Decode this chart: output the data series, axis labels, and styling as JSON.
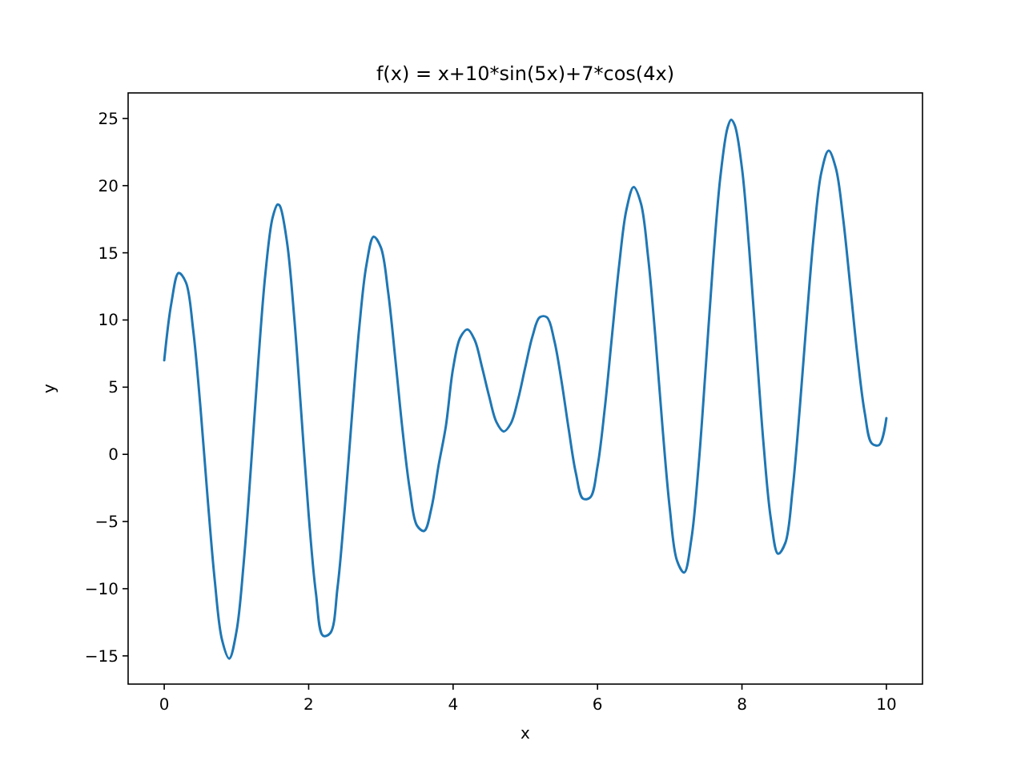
{
  "chart_data": {
    "type": "line",
    "title": "f(x) = x+10*sin(5x)+7*cos(4x)",
    "xlabel": "x",
    "ylabel": "y",
    "xlim": [
      -0.5,
      10.5
    ],
    "ylim": [
      -17.1,
      26.9
    ],
    "xticks": [
      0,
      2,
      4,
      6,
      8,
      10
    ],
    "yticks": [
      -15,
      -10,
      -5,
      0,
      5,
      10,
      15,
      20,
      25
    ],
    "marker": "none",
    "line_style": "solid",
    "series": [
      {
        "color": "#1f77b4",
        "x": [
          0,
          0.1,
          0.2,
          0.3,
          0.4,
          0.5,
          0.6,
          0.7,
          0.8,
          0.9,
          1,
          1.1,
          1.2,
          1.3,
          1.4,
          1.5,
          1.57,
          1.6,
          1.7,
          1.8,
          1.9,
          2,
          2.1,
          2.2,
          2.3,
          2.4,
          2.5,
          2.6,
          2.7,
          2.8,
          2.9,
          3,
          3.1,
          3.2,
          3.3,
          3.4,
          3.5,
          3.6,
          3.7,
          3.8,
          3.9,
          4,
          4.1,
          4.2,
          4.3,
          4.4,
          4.5,
          4.6,
          4.7,
          4.8,
          4.9,
          5,
          5.1,
          5.2,
          5.3,
          5.4,
          5.5,
          5.6,
          5.7,
          5.8,
          5.9,
          6,
          6.1,
          6.2,
          6.3,
          6.4,
          6.5,
          6.6,
          6.7,
          6.8,
          6.9,
          7,
          7.1,
          7.2,
          7.3,
          7.4,
          7.5,
          7.6,
          7.7,
          7.8,
          7.85,
          7.9,
          8,
          8.1,
          8.2,
          8.3,
          8.4,
          8.5,
          8.6,
          8.7,
          8.8,
          8.9,
          9,
          9.1,
          9.2,
          9.3,
          9.4,
          9.5,
          9.6,
          9.7,
          9.8,
          9.9,
          10
        ],
        "values": [
          7.0,
          11.3,
          13.5,
          12.8,
          9.3,
          3.6,
          -3.2,
          -9.4,
          -13.8,
          -15.2,
          -13.2,
          -8.1,
          -1.0,
          6.7,
          13.4,
          17.6,
          18.6,
          18.5,
          15.8,
          10.2,
          2.9,
          -4.5,
          -10.3,
          -13.5,
          -13.3,
          -9.9,
          -4.0,
          2.9,
          9.4,
          14.1,
          16.2,
          15.4,
          12.1,
          7.1,
          1.8,
          -2.6,
          -5.3,
          -5.7,
          -4.0,
          -0.8,
          2.1,
          6.4,
          8.7,
          9.3,
          8.5,
          6.5,
          4.3,
          2.4,
          1.7,
          2.3,
          4.1,
          6.5,
          8.8,
          10.2,
          10.2,
          8.5,
          5.5,
          1.9,
          -1.4,
          -3.3,
          -3.2,
          -0.9,
          3.4,
          8.8,
          14.1,
          18.2,
          19.9,
          18.7,
          14.7,
          8.8,
          2.0,
          -4.0,
          -7.9,
          -8.8,
          -6.3,
          -0.8,
          6.6,
          14.3,
          20.6,
          24.3,
          24.9,
          24.5,
          21.3,
          15.3,
          7.9,
          0.7,
          -4.8,
          -7.4,
          -6.6,
          -2.7,
          3.4,
          10.3,
          16.6,
          21.0,
          22.6,
          21.3,
          17.6,
          12.5,
          7.3,
          3.1,
          0.8,
          0.7,
          2.7
        ]
      }
    ]
  }
}
